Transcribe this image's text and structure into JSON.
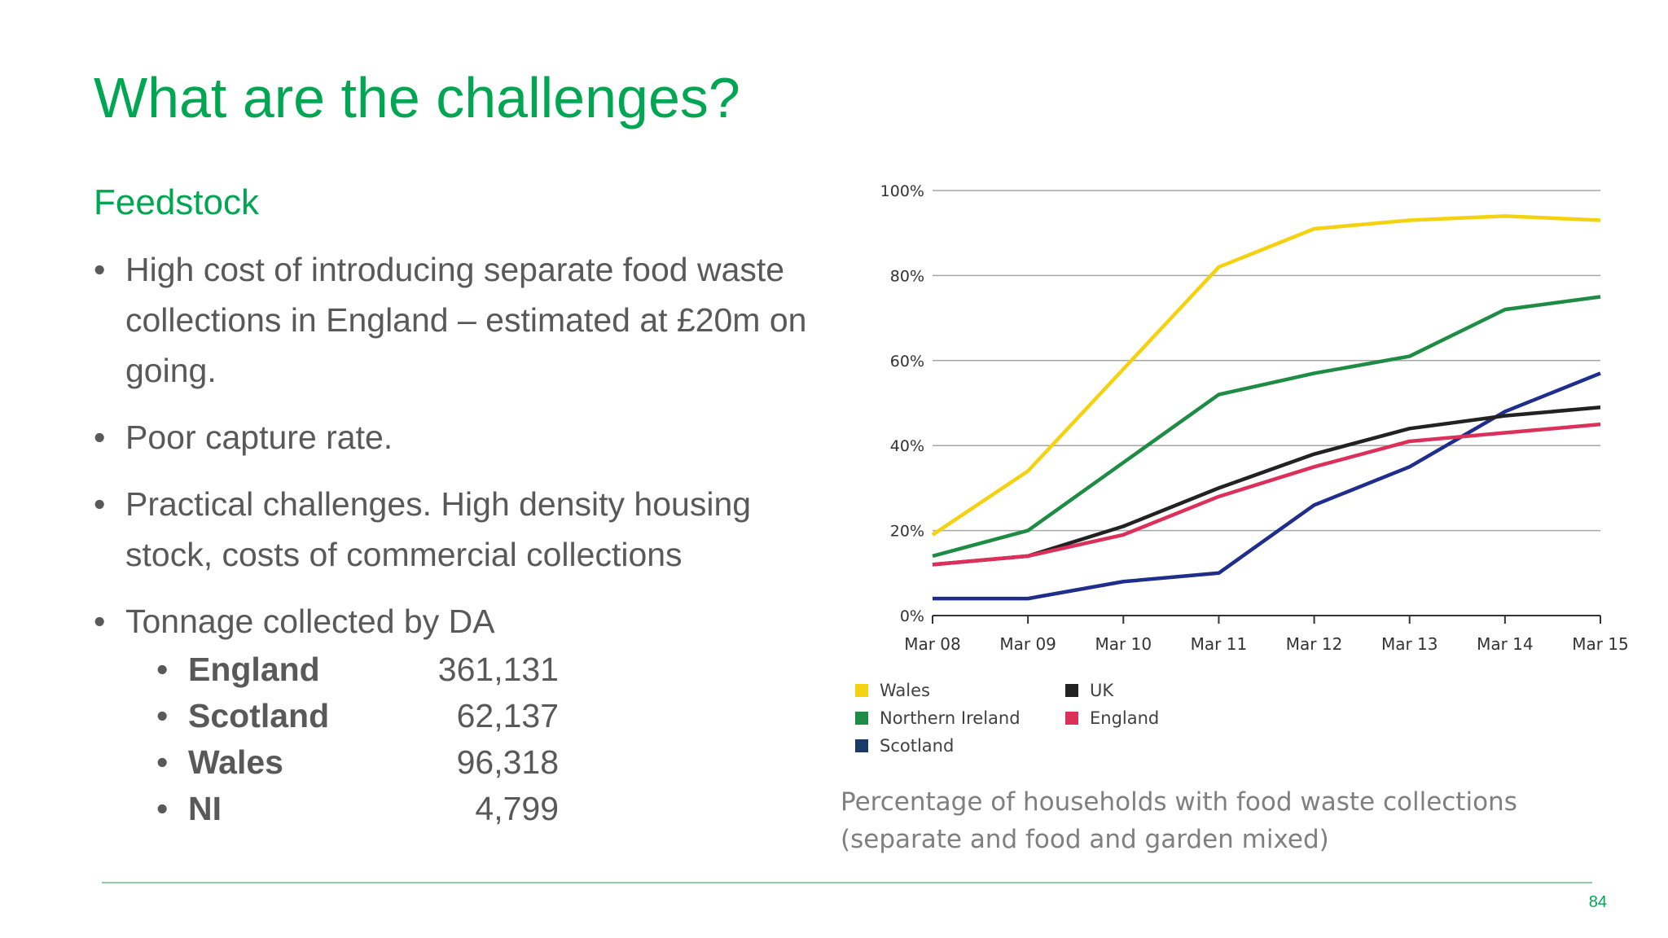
{
  "slide": {
    "title": "What are the challenges?",
    "subtitle": "Feedstock",
    "bullets": [
      "High cost of introducing separate food waste collections in England – estimated at £20m on going.",
      "Poor capture rate.",
      "Practical challenges. High density housing stock, costs of commercial collections",
      "Tonnage collected by DA"
    ],
    "tonnage": [
      {
        "name": "England",
        "value": "361,131"
      },
      {
        "name": "Scotland",
        "value": "62,137"
      },
      {
        "name": "Wales",
        "value": "96,318"
      },
      {
        "name": "NI",
        "value": "4,799"
      }
    ],
    "caption": "Percentage of households with food waste collections (separate and food and garden mixed)",
    "page_number": "84"
  },
  "chart_data": {
    "type": "line",
    "title": "",
    "xlabel": "",
    "ylabel": "",
    "categories": [
      "Mar 08",
      "Mar 09",
      "Mar 10",
      "Mar 11",
      "Mar 12",
      "Mar 13",
      "Mar 14",
      "Mar 15"
    ],
    "yticks": [
      "0%",
      "20%",
      "40%",
      "60%",
      "80%",
      "100%"
    ],
    "ylim": [
      0,
      100
    ],
    "grid": true,
    "legend_position": "bottom-left",
    "series": [
      {
        "name": "Wales",
        "color": "#f5d20f",
        "values": [
          19,
          34,
          58,
          82,
          91,
          93,
          94,
          93
        ]
      },
      {
        "name": "Northern Ireland",
        "color": "#1f8c45",
        "values": [
          14,
          20,
          36,
          52,
          57,
          61,
          72,
          75
        ]
      },
      {
        "name": "Scotland",
        "color": "#1f2e8c",
        "values": [
          4,
          4,
          8,
          10,
          26,
          35,
          48,
          57
        ]
      },
      {
        "name": "UK",
        "color": "#222222",
        "values": [
          12,
          14,
          21,
          30,
          38,
          44,
          47,
          49
        ]
      },
      {
        "name": "England",
        "color": "#dc2f5a",
        "values": [
          12,
          14,
          19,
          28,
          35,
          41,
          43,
          45
        ]
      }
    ],
    "legend_swatch_colors": {
      "Wales": "#f5d20f",
      "Northern Ireland": "#1f8c45",
      "Scotland": "#1b3a66",
      "UK": "#222222",
      "England": "#dc2f5a"
    }
  }
}
